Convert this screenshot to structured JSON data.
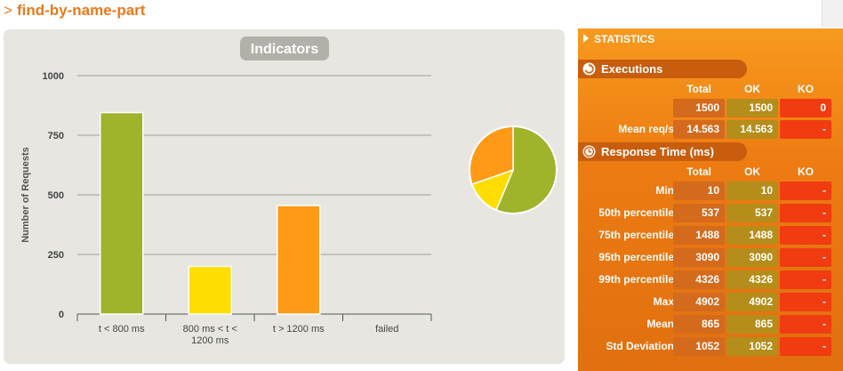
{
  "page": {
    "title": "find-by-name-part",
    "prefix": ">"
  },
  "chart_data": [
    {
      "type": "bar",
      "title": "Indicators",
      "ylabel": "Number of Requests",
      "xlabel": "",
      "ylim": [
        0,
        1000
      ],
      "yticks": [
        0,
        250,
        500,
        750,
        1000
      ],
      "categories": [
        "t < 800 ms",
        "800 ms < t < 1200 ms",
        "t > 1200 ms",
        "failed"
      ],
      "category_lines": [
        [
          "t < 800 ms"
        ],
        [
          "800 ms < t <",
          "1200 ms"
        ],
        [
          "t > 1200 ms"
        ],
        [
          "failed"
        ]
      ],
      "values": [
        845,
        200,
        455,
        0
      ],
      "colors": [
        "#a1b22b",
        "#ffdd00",
        "#ff9916",
        "#f15b4f"
      ],
      "grid": true,
      "legend": "none"
    },
    {
      "type": "pie",
      "labels": [
        "t < 800 ms",
        "800 ms < t < 1200 ms",
        "t > 1200 ms",
        "failed"
      ],
      "values": [
        845,
        200,
        455,
        0
      ],
      "colors": [
        "#a1b22b",
        "#ffdd00",
        "#ff9916",
        "#f15b4f"
      ]
    }
  ],
  "stats": {
    "header": "STATISTICS",
    "executions": {
      "title": "Executions",
      "columns": [
        "Total",
        "OK",
        "KO"
      ],
      "rows": [
        {
          "label": "",
          "total": "1500",
          "ok": "1500",
          "ko": "0"
        },
        {
          "label": "Mean req/s",
          "total": "14.563",
          "ok": "14.563",
          "ko": "-"
        }
      ]
    },
    "response_time": {
      "title": "Response Time (ms)",
      "columns": [
        "Total",
        "OK",
        "KO"
      ],
      "rows": [
        {
          "label": "Min",
          "total": "10",
          "ok": "10",
          "ko": "-"
        },
        {
          "label": "50th percentile",
          "total": "537",
          "ok": "537",
          "ko": "-"
        },
        {
          "label": "75th percentile",
          "total": "1488",
          "ok": "1488",
          "ko": "-"
        },
        {
          "label": "95th percentile",
          "total": "3090",
          "ok": "3090",
          "ko": "-"
        },
        {
          "label": "99th percentile",
          "total": "4326",
          "ok": "4326",
          "ko": "-"
        },
        {
          "label": "Max",
          "total": "4902",
          "ok": "4902",
          "ko": "-"
        },
        {
          "label": "Mean",
          "total": "865",
          "ok": "865",
          "ko": "-"
        },
        {
          "label": "Std Deviation",
          "total": "1052",
          "ok": "1052",
          "ko": "-"
        }
      ]
    }
  }
}
